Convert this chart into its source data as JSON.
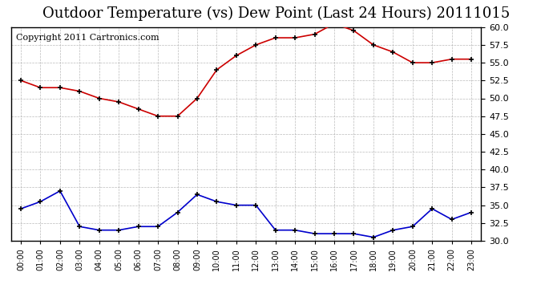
{
  "title": "Outdoor Temperature (vs) Dew Point (Last 24 Hours) 20111015",
  "copyright_text": "Copyright 2011 Cartronics.com",
  "x_labels": [
    "00:00",
    "01:00",
    "02:00",
    "03:00",
    "04:00",
    "05:00",
    "06:00",
    "07:00",
    "08:00",
    "09:00",
    "10:00",
    "11:00",
    "12:00",
    "13:00",
    "14:00",
    "15:00",
    "16:00",
    "17:00",
    "18:00",
    "19:00",
    "20:00",
    "21:00",
    "22:00",
    "23:00"
  ],
  "temp_data": [
    52.5,
    51.5,
    51.5,
    51.0,
    50.0,
    49.5,
    48.5,
    47.5,
    47.5,
    50.0,
    54.0,
    56.0,
    57.5,
    58.5,
    58.5,
    59.0,
    60.5,
    59.5,
    57.5,
    56.5,
    55.0,
    55.0,
    55.5,
    55.5
  ],
  "dew_data": [
    34.5,
    35.5,
    37.0,
    32.0,
    31.5,
    31.5,
    32.0,
    32.0,
    34.0,
    36.5,
    35.5,
    35.0,
    35.0,
    31.5,
    31.5,
    31.0,
    31.0,
    31.0,
    30.5,
    31.5,
    32.0,
    34.5,
    33.0,
    34.0
  ],
  "temp_color": "#cc0000",
  "dew_color": "#0000cc",
  "ylim_min": 30.0,
  "ylim_max": 60.0,
  "ytick_step": 2.5,
  "background_color": "#ffffff",
  "plot_bg_color": "#ffffff",
  "grid_color": "#aaaaaa",
  "title_fontsize": 13,
  "copyright_fontsize": 8
}
